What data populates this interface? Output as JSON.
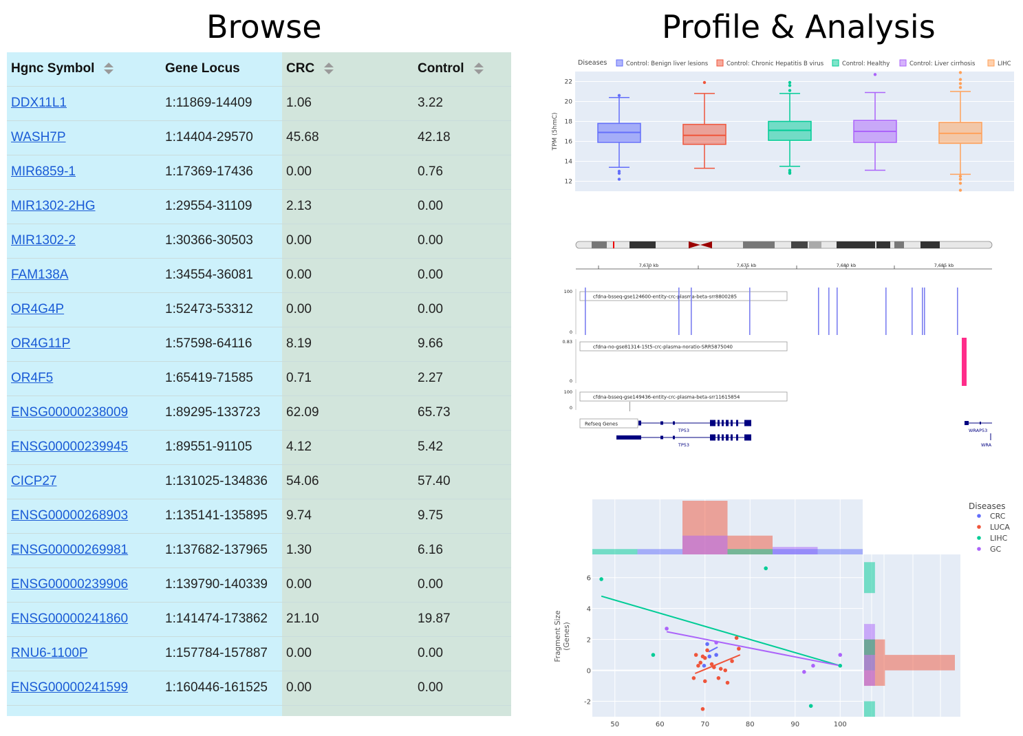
{
  "headers": {
    "browse": "Browse",
    "profile": "Profile & Analysis"
  },
  "table": {
    "columns": [
      "Hgnc Symbol",
      "Gene Locus",
      "CRC",
      "Control"
    ],
    "rows": [
      [
        "DDX11L1",
        "1:11869-14409",
        "1.06",
        "3.22"
      ],
      [
        "WASH7P",
        "1:14404-29570",
        "45.68",
        "42.18"
      ],
      [
        "MIR6859-1",
        "1:17369-17436",
        "0.00",
        "0.76"
      ],
      [
        "MIR1302-2HG",
        "1:29554-31109",
        "2.13",
        "0.00"
      ],
      [
        "MIR1302-2",
        "1:30366-30503",
        "0.00",
        "0.00"
      ],
      [
        "FAM138A",
        "1:34554-36081",
        "0.00",
        "0.00"
      ],
      [
        "OR4G4P",
        "1:52473-53312",
        "0.00",
        "0.00"
      ],
      [
        "OR4G11P",
        "1:57598-64116",
        "8.19",
        "9.66"
      ],
      [
        "OR4F5",
        "1:65419-71585",
        "0.71",
        "2.27"
      ],
      [
        "ENSG00000238009",
        "1:89295-133723",
        "62.09",
        "65.73"
      ],
      [
        "ENSG00000239945",
        "1:89551-91105",
        "4.12",
        "5.42"
      ],
      [
        "CICP27",
        "1:131025-134836",
        "54.06",
        "57.40"
      ],
      [
        "ENSG00000268903",
        "1:135141-135895",
        "9.74",
        "9.75"
      ],
      [
        "ENSG00000269981",
        "1:137682-137965",
        "1.30",
        "6.16"
      ],
      [
        "ENSG00000239906",
        "1:139790-140339",
        "0.00",
        "0.00"
      ],
      [
        "ENSG00000241860",
        "1:141474-173862",
        "21.10",
        "19.87"
      ],
      [
        "RNU6-1100P",
        "1:157784-157887",
        "0.00",
        "0.00"
      ],
      [
        "ENSG00000241599",
        "1:160446-161525",
        "0.00",
        "0.00"
      ]
    ]
  },
  "boxplot": {
    "legend_title": "Diseases",
    "ylabel": "TPM (5hmC)",
    "yticks": [
      12,
      14,
      16,
      18,
      20,
      22
    ],
    "ylim": [
      11,
      23
    ],
    "groups": [
      {
        "name": "Control: Benign liver lesions",
        "color": "#636efa",
        "q1": 15.9,
        "median": 16.9,
        "q3": 17.8,
        "low": 13.4,
        "high": 20.4,
        "outliers": [
          20.6,
          13.0,
          12.8,
          12.2
        ]
      },
      {
        "name": "Control: Chronic Hepatitis B virus",
        "color": "#ef553b",
        "q1": 15.7,
        "median": 16.6,
        "q3": 17.7,
        "low": 13.3,
        "high": 20.8,
        "outliers": [
          21.9
        ]
      },
      {
        "name": "Control: Healthy",
        "color": "#00cc96",
        "q1": 16.1,
        "median": 17.1,
        "q3": 18.0,
        "low": 13.5,
        "high": 20.8,
        "outliers": [
          21.9,
          21.6,
          21.1,
          13.1,
          12.9,
          12.8
        ]
      },
      {
        "name": "Control: Liver cirrhosis",
        "color": "#ab63fa",
        "q1": 15.9,
        "median": 17.0,
        "q3": 18.1,
        "low": 13.1,
        "high": 20.9,
        "outliers": [
          22.7
        ]
      },
      {
        "name": "LIHC",
        "color": "#ffa15a",
        "q1": 15.8,
        "median": 16.8,
        "q3": 17.9,
        "low": 12.7,
        "high": 21.0,
        "outliers": [
          22.9,
          22.2,
          21.8,
          21.4,
          12.5,
          12.2,
          11.8,
          11.1
        ]
      }
    ]
  },
  "genome": {
    "ticks": [
      "7,670 kb",
      "7,675 kb",
      "7,680 kb",
      "7,685 kb"
    ],
    "tracks": [
      {
        "label": "cfdna-bsseq-gse124600-entity-crc-plasma-beta-srr8800285",
        "ymax": "100",
        "ymin": "0"
      },
      {
        "label": "cfdna-no-gse81314-15t5-crc-plasma-noratio-SRR5875040",
        "ymax": "0.83",
        "ymin": "0"
      },
      {
        "label": "cfdna-bsseq-gse149436-entity-crc-plasma-beta-srr11615854",
        "ymax": "100",
        "ymin": "0"
      }
    ],
    "refseq_label": "Refseq Genes",
    "genes": [
      "TP53",
      "TP53",
      "WRAP53",
      "WRA"
    ]
  },
  "scatter": {
    "legend_title": "Diseases",
    "ylabel": "Fragment Size\n(Genes)",
    "xticks": [
      50,
      60,
      70,
      80,
      90,
      100
    ],
    "yticks": [
      -2,
      0,
      2,
      4,
      6
    ],
    "xlim": [
      45,
      105
    ],
    "ylim": [
      -3,
      7.5
    ],
    "series": [
      {
        "name": "CRC",
        "color": "#636efa",
        "points": [
          [
            70.5,
            1.7
          ],
          [
            72.5,
            1.0
          ],
          [
            71.0,
            0.9
          ],
          [
            69.8,
            0.3
          ]
        ],
        "fit": [
          [
            70.8,
            1.2
          ],
          [
            72.8,
            1.5
          ]
        ]
      },
      {
        "name": "LUCA",
        "color": "#ef553b",
        "points": [
          [
            68.0,
            1.0
          ],
          [
            69.5,
            0.9
          ],
          [
            70.5,
            1.3
          ],
          [
            71.5,
            0.4
          ],
          [
            72.0,
            0.2
          ],
          [
            73.5,
            0.1
          ],
          [
            74.5,
            0.0
          ],
          [
            76.0,
            0.6
          ],
          [
            77.5,
            1.4
          ],
          [
            77.0,
            2.1
          ],
          [
            68.5,
            0.3
          ],
          [
            69.0,
            0.5
          ],
          [
            70.0,
            0.8
          ],
          [
            67.5,
            -0.5
          ],
          [
            70.0,
            -0.7
          ],
          [
            73.0,
            -0.5
          ],
          [
            75.0,
            -0.8
          ],
          [
            69.5,
            -2.5
          ]
        ],
        "fit": [
          [
            67.8,
            -0.2
          ],
          [
            77.8,
            1.0
          ]
        ]
      },
      {
        "name": "LIHC",
        "color": "#00cc96",
        "points": [
          [
            47.0,
            5.9
          ],
          [
            83.5,
            6.6
          ],
          [
            58.5,
            1.0
          ],
          [
            93.5,
            -2.3
          ],
          [
            100.0,
            0.3
          ]
        ],
        "fit": [
          [
            47.0,
            4.8
          ],
          [
            100.0,
            0.3
          ]
        ]
      },
      {
        "name": "GC",
        "color": "#ab63fa",
        "points": [
          [
            61.5,
            2.7
          ],
          [
            72.5,
            1.8
          ],
          [
            92.0,
            -0.1
          ],
          [
            94.0,
            0.3
          ],
          [
            100.0,
            1.0
          ]
        ],
        "fit": [
          [
            61.5,
            2.5
          ],
          [
            100.0,
            0.3
          ]
        ]
      }
    ]
  }
}
